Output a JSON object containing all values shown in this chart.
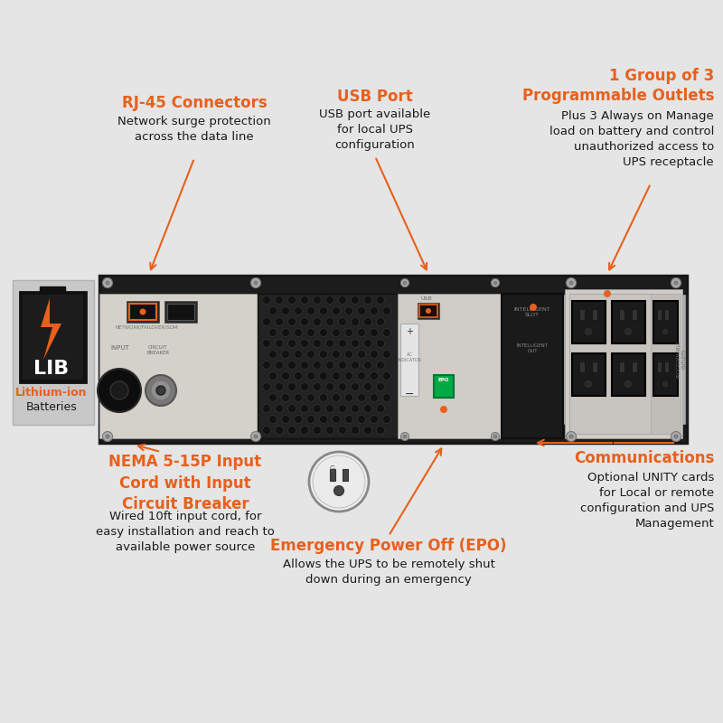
{
  "bg_color": "#e5e5e5",
  "orange": "#e8601c",
  "black": "#1a1a1a",
  "white": "#ffffff",
  "gray_dark": "#555555",
  "gray_mid": "#888888",
  "gray_light": "#cccccc",
  "labels": {
    "rj45_title": "RJ-45 Connectors",
    "rj45_body": "Network surge protection\nacross the data line",
    "usb_title": "USB Port",
    "usb_body": "USB port available\nfor local UPS\nconfiguration",
    "outlets_title": "1 Group of 3\nProgrammable Outlets",
    "outlets_body": "Plus 3 Always on Manage\nload on battery and control\nunauthorized access to\nUPS receptacle",
    "nema_title": "NEMA 5-15P Input\nCord with Input\nCircuit Breaker",
    "nema_body": "Wired 10ft input cord, for\neasy installation and reach to\navailable power source",
    "epo_title": "Emergency Power Off (EPO)",
    "epo_body": "Allows the UPS to be remotely shut\ndown during an emergency",
    "comm_title": "Communications",
    "comm_body": "Optional UNITY cards\nfor Local or remote\nconfiguration and UPS\nManagement",
    "lib_line1": "Lithium-ion",
    "lib_line2": "Batteries"
  },
  "figsize": [
    8.0,
    8.0
  ],
  "dpi": 100
}
